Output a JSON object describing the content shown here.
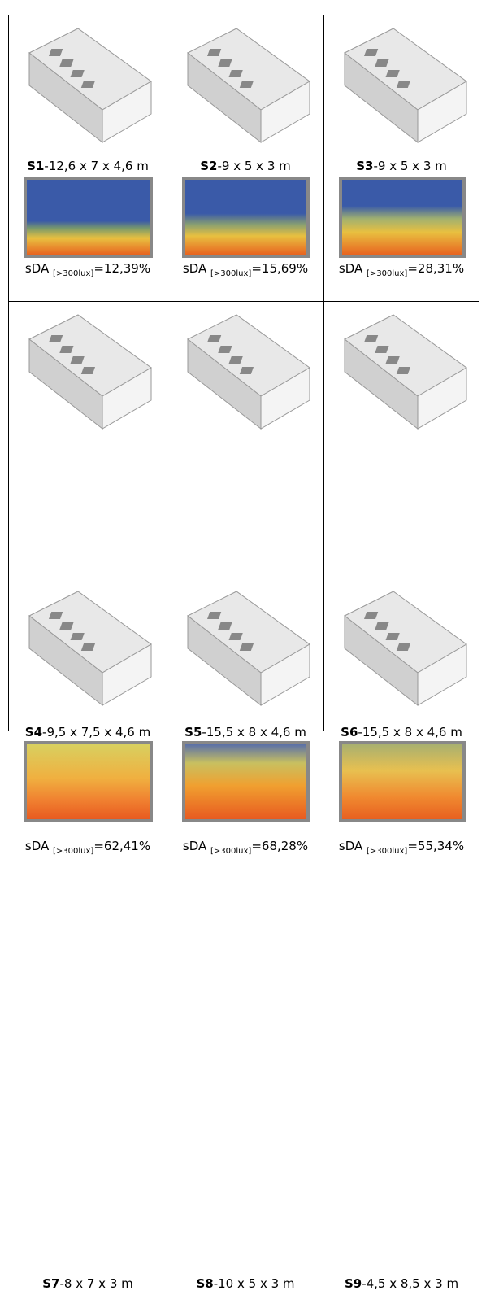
{
  "sda_label": "sDA",
  "sda_sub": "[>300lux]",
  "cells": [
    {
      "code": "S1",
      "dims": "-12,6 x 7 x 4,6 m",
      "sda": "=12,39%"
    },
    {
      "code": "S2",
      "dims": "-9 x 5 x 3 m",
      "sda": "=15,69%"
    },
    {
      "code": "S3",
      "dims": "-9 x 5 x 3 m",
      "sda": "=28,31%"
    },
    {
      "code": "S4",
      "dims": "-9,5 x 7,5 x 4,6 m",
      "sda": "=62,41%"
    },
    {
      "code": "S5",
      "dims": "-15,5 x 8 x 4,6 m",
      "sda": "=68,28%"
    },
    {
      "code": "S6",
      "dims": "-15,5 x 8 x 4,6 m",
      "sda": "=55,34%"
    },
    {
      "code": "S7",
      "dims": "-8 x 7 x 3 m"
    },
    {
      "code": "S8",
      "dims": "-10 x 5 x 3 m"
    },
    {
      "code": "S9",
      "dims": "-4,5 x 8,5 x 3 m"
    }
  ]
}
